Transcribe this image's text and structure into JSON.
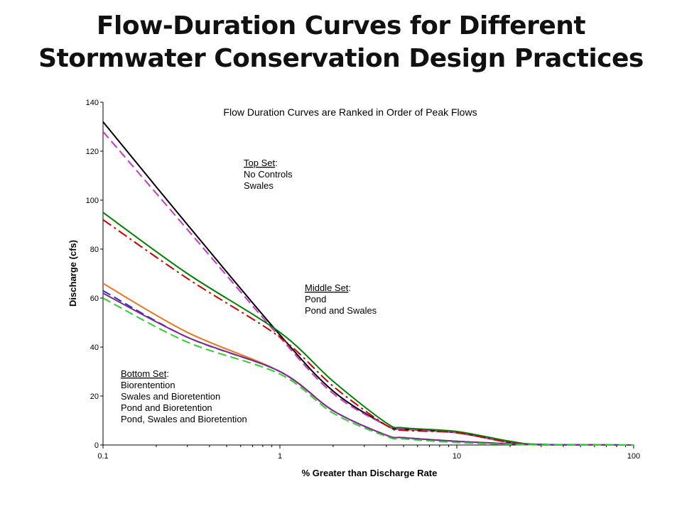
{
  "slide": {
    "title_line1": "Flow-Duration Curves for Different",
    "title_line2": "Stormwater Conservation Design Practices"
  },
  "chart_data": {
    "type": "line",
    "title": "Flow Duration Curves are Ranked in Order of Peak Flows",
    "xlabel": "% Greater than Discharge Rate",
    "ylabel": "Discharge (cfs)",
    "x_scale": "log",
    "xlim": [
      0.1,
      100
    ],
    "ylim": [
      0,
      140
    ],
    "x_ticks": [
      "0.1",
      "1",
      "10",
      "100"
    ],
    "x_tick_values": [
      0.1,
      1,
      10,
      100
    ],
    "y_ticks": [
      "0",
      "20",
      "40",
      "60",
      "80",
      "100",
      "120",
      "140"
    ],
    "y_tick_values": [
      0,
      20,
      40,
      60,
      80,
      100,
      120,
      140
    ],
    "grid": false,
    "legend": "none",
    "annotations": [
      {
        "heading": "Top Set",
        "lines": [
          "No Controls",
          "Swales"
        ]
      },
      {
        "heading": "Middle Set",
        "lines": [
          "Pond",
          "Pond and Swales"
        ]
      },
      {
        "heading": "Bottom Set",
        "lines": [
          "Biorentention",
          "Swales and Bioretention",
          "Pond and Bioretention",
          "Pond, Swales and Bioretention"
        ]
      }
    ],
    "series": [
      {
        "color": "#000000",
        "dash": "solid",
        "x": [
          0.1,
          0.3,
          1,
          2,
          4,
          5,
          10,
          20,
          30,
          100
        ],
        "y": [
          132,
          90,
          45,
          22,
          8,
          6.5,
          5,
          1,
          0.2,
          0
        ]
      },
      {
        "color": "#cc33cc",
        "dash": "dashed",
        "x": [
          0.1,
          0.3,
          1,
          2,
          4,
          5,
          10,
          20,
          30,
          100
        ],
        "y": [
          128,
          88,
          44,
          21,
          8,
          6.5,
          5,
          1,
          0.2,
          0
        ]
      },
      {
        "color": "#008000",
        "dash": "solid",
        "x": [
          0.1,
          0.3,
          1,
          2,
          4,
          5,
          10,
          20,
          30,
          100
        ],
        "y": [
          95,
          70,
          46,
          26,
          9,
          7,
          5.5,
          1.5,
          0.2,
          0
        ]
      },
      {
        "color": "#cc0000",
        "dash": "dashdot",
        "x": [
          0.1,
          0.3,
          1,
          2,
          4,
          5,
          10,
          20,
          30,
          100
        ],
        "y": [
          92,
          68,
          44,
          24,
          8,
          6,
          5,
          1,
          0.2,
          0
        ]
      },
      {
        "color": "#e87722",
        "dash": "solid",
        "x": [
          0.1,
          0.3,
          1,
          2,
          4,
          5,
          10,
          20,
          30,
          100
        ],
        "y": [
          66,
          46,
          30,
          14,
          4,
          3,
          1.5,
          0.5,
          0.1,
          0
        ]
      },
      {
        "color": "#3333cc",
        "dash": "dashed",
        "x": [
          0.1,
          0.3,
          1,
          2,
          4,
          5,
          10,
          20,
          30,
          100
        ],
        "y": [
          63,
          44,
          30,
          14,
          4,
          3,
          1.5,
          0.5,
          0.1,
          0
        ]
      },
      {
        "color": "#7b2d8e",
        "dash": "solid",
        "x": [
          0.1,
          0.3,
          1,
          2,
          4,
          5,
          10,
          20,
          30,
          100
        ],
        "y": [
          62,
          44,
          30,
          14,
          4,
          3,
          1.5,
          0.5,
          0.1,
          0
        ]
      },
      {
        "color": "#33cc33",
        "dash": "dashed",
        "x": [
          0.1,
          0.3,
          1,
          2,
          4,
          5,
          10,
          20,
          30,
          100
        ],
        "y": [
          60,
          42,
          29,
          13,
          3.5,
          2.5,
          1,
          0.3,
          0.1,
          0
        ]
      }
    ]
  }
}
